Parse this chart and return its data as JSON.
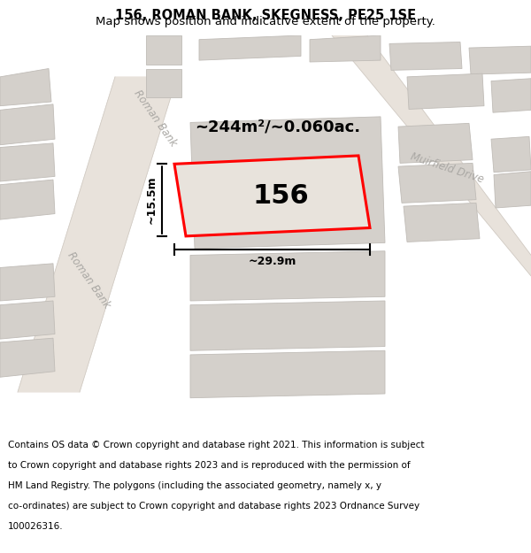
{
  "title": "156, ROMAN BANK, SKEGNESS, PE25 1SE",
  "subtitle": "Map shows position and indicative extent of the property.",
  "footer_lines": [
    "Contains OS data © Crown copyright and database right 2021. This information is subject",
    "to Crown copyright and database rights 2023 and is reproduced with the permission of",
    "HM Land Registry. The polygons (including the associated geometry, namely x, y",
    "co-ordinates) are subject to Crown copyright and database rights 2023 Ordnance Survey",
    "100026316."
  ],
  "map_bg": "#f0ede8",
  "road_fill": "#e8e2db",
  "building_fill": "#d4d0cb",
  "building_edge": "#c0bcb7",
  "plot_fill": "#e8e3dc",
  "plot_edge": "#ff0000",
  "label_color": "#aaa8a4",
  "street_label_1": "Roman Bank",
  "street_label_2": "Roman Bank",
  "street_label_3": "Muirfield Drive",
  "area_text": "~244m²/~0.060ac.",
  "plot_number": "156",
  "dim_width": "~29.9m",
  "dim_height": "~15.5m",
  "title_fontsize": 10.5,
  "subtitle_fontsize": 9.5,
  "footer_fontsize": 7.5,
  "area_fontsize": 13,
  "plot_num_fontsize": 22,
  "dim_fontsize": 9,
  "label_fontsize": 8.5
}
